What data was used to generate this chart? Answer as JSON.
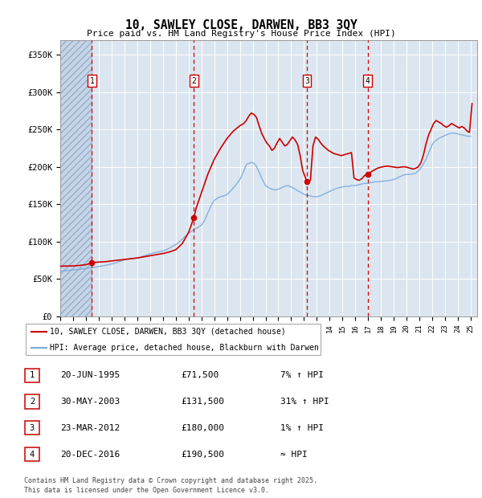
{
  "title": "10, SAWLEY CLOSE, DARWEN, BB3 3QY",
  "subtitle": "Price paid vs. HM Land Registry's House Price Index (HPI)",
  "xlim_start": 1993.0,
  "xlim_end": 2025.5,
  "ylim": [
    0,
    370000
  ],
  "yticks": [
    0,
    50000,
    100000,
    150000,
    200000,
    250000,
    300000,
    350000
  ],
  "ytick_labels": [
    "£0",
    "£50K",
    "£100K",
    "£150K",
    "£200K",
    "£250K",
    "£300K",
    "£350K"
  ],
  "background_color": "#ffffff",
  "plot_bg_color": "#dce6f0",
  "grid_color": "#ffffff",
  "transactions": [
    {
      "num": 1,
      "date_str": "20-JUN-1995",
      "date_x": 1995.47,
      "price": 71500,
      "hpi_pct": "7% ↑ HPI"
    },
    {
      "num": 2,
      "date_str": "30-MAY-2003",
      "date_x": 2003.41,
      "price": 131500,
      "hpi_pct": "31% ↑ HPI"
    },
    {
      "num": 3,
      "date_str": "23-MAR-2012",
      "date_x": 2012.23,
      "price": 180000,
      "hpi_pct": "1% ↑ HPI"
    },
    {
      "num": 4,
      "date_str": "20-DEC-2016",
      "date_x": 2016.97,
      "price": 190500,
      "hpi_pct": "≈ HPI"
    }
  ],
  "red_line_color": "#cc0000",
  "blue_line_color": "#7aaadd",
  "legend1": "10, SAWLEY CLOSE, DARWEN, BB3 3QY (detached house)",
  "legend2": "HPI: Average price, detached house, Blackburn with Darwen",
  "footnote": "Contains HM Land Registry data © Crown copyright and database right 2025.\nThis data is licensed under the Open Government Licence v3.0.",
  "hpi_data_x": [
    1993.0,
    1993.25,
    1993.5,
    1993.75,
    1994.0,
    1994.25,
    1994.5,
    1994.75,
    1995.0,
    1995.25,
    1995.5,
    1995.75,
    1996.0,
    1996.25,
    1996.5,
    1996.75,
    1997.0,
    1997.25,
    1997.5,
    1997.75,
    1998.0,
    1998.25,
    1998.5,
    1998.75,
    1999.0,
    1999.25,
    1999.5,
    1999.75,
    2000.0,
    2000.25,
    2000.5,
    2000.75,
    2001.0,
    2001.25,
    2001.5,
    2001.75,
    2002.0,
    2002.25,
    2002.5,
    2002.75,
    2003.0,
    2003.25,
    2003.5,
    2003.75,
    2004.0,
    2004.25,
    2004.5,
    2004.75,
    2005.0,
    2005.25,
    2005.5,
    2005.75,
    2006.0,
    2006.25,
    2006.5,
    2006.75,
    2007.0,
    2007.25,
    2007.5,
    2007.75,
    2008.0,
    2008.25,
    2008.5,
    2008.75,
    2009.0,
    2009.25,
    2009.5,
    2009.75,
    2010.0,
    2010.25,
    2010.5,
    2010.75,
    2011.0,
    2011.25,
    2011.5,
    2011.75,
    2012.0,
    2012.25,
    2012.5,
    2012.75,
    2013.0,
    2013.25,
    2013.5,
    2013.75,
    2014.0,
    2014.25,
    2014.5,
    2014.75,
    2015.0,
    2015.25,
    2015.5,
    2015.75,
    2016.0,
    2016.25,
    2016.5,
    2016.75,
    2017.0,
    2017.25,
    2017.5,
    2017.75,
    2018.0,
    2018.25,
    2018.5,
    2018.75,
    2019.0,
    2019.25,
    2019.5,
    2019.75,
    2020.0,
    2020.25,
    2020.5,
    2020.75,
    2021.0,
    2021.25,
    2021.5,
    2021.75,
    2022.0,
    2022.25,
    2022.5,
    2022.75,
    2023.0,
    2023.25,
    2023.5,
    2023.75,
    2024.0,
    2024.25,
    2024.5,
    2024.75,
    2025.0
  ],
  "hpi_data_y": [
    60000,
    60500,
    61000,
    61500,
    62000,
    62500,
    63000,
    63500,
    64000,
    64500,
    65000,
    65800,
    66500,
    67200,
    68000,
    69000,
    70000,
    71000,
    72500,
    74000,
    75500,
    76500,
    77000,
    77500,
    78000,
    79000,
    80500,
    82000,
    83500,
    84500,
    85500,
    86500,
    87500,
    89000,
    91000,
    93500,
    96000,
    99000,
    103000,
    107000,
    111000,
    114000,
    117000,
    119000,
    122000,
    128000,
    138000,
    148000,
    155000,
    158000,
    160000,
    161000,
    163000,
    167000,
    172000,
    177000,
    183000,
    192000,
    203000,
    205000,
    206000,
    202000,
    193000,
    183000,
    175000,
    172000,
    170000,
    169000,
    170000,
    172000,
    174000,
    175000,
    173000,
    171000,
    168000,
    166000,
    163000,
    162000,
    161000,
    160000,
    160000,
    161000,
    163000,
    165000,
    167000,
    169000,
    171000,
    172000,
    173000,
    174000,
    174000,
    175000,
    175000,
    176000,
    177000,
    178000,
    178000,
    179000,
    180000,
    180000,
    180500,
    181000,
    181500,
    182000,
    183000,
    185000,
    187000,
    189000,
    190000,
    190000,
    190500,
    192000,
    196000,
    202000,
    210000,
    220000,
    230000,
    235000,
    238000,
    240000,
    242000,
    244000,
    245000,
    245000,
    244000,
    243000,
    242000,
    241000,
    241000
  ],
  "red_data_x": [
    1993.0,
    1993.5,
    1994.0,
    1994.5,
    1995.0,
    1995.47,
    1995.6,
    1996.0,
    1996.5,
    1997.0,
    1997.5,
    1998.0,
    1998.5,
    1999.0,
    1999.5,
    2000.0,
    2000.5,
    2001.0,
    2001.5,
    2002.0,
    2002.5,
    2003.0,
    2003.41,
    2003.6,
    2004.0,
    2004.5,
    2005.0,
    2005.5,
    2006.0,
    2006.5,
    2007.0,
    2007.3,
    2007.5,
    2007.7,
    2007.9,
    2008.1,
    2008.3,
    2008.5,
    2008.7,
    2008.9,
    2009.1,
    2009.3,
    2009.5,
    2009.7,
    2009.9,
    2010.1,
    2010.3,
    2010.5,
    2010.7,
    2010.9,
    2011.1,
    2011.3,
    2011.5,
    2011.7,
    2011.9,
    2012.23,
    2012.5,
    2012.7,
    2012.9,
    2013.1,
    2013.3,
    2013.5,
    2013.7,
    2013.9,
    2014.1,
    2014.3,
    2014.5,
    2014.7,
    2014.9,
    2015.1,
    2015.3,
    2015.5,
    2015.7,
    2015.9,
    2016.1,
    2016.3,
    2016.5,
    2016.7,
    2016.97,
    2017.1,
    2017.3,
    2017.5,
    2017.7,
    2017.9,
    2018.1,
    2018.3,
    2018.5,
    2018.7,
    2018.9,
    2019.1,
    2019.3,
    2019.5,
    2019.7,
    2019.9,
    2020.1,
    2020.3,
    2020.5,
    2020.7,
    2020.9,
    2021.1,
    2021.3,
    2021.5,
    2021.7,
    2021.9,
    2022.1,
    2022.3,
    2022.5,
    2022.7,
    2022.9,
    2023.1,
    2023.3,
    2023.5,
    2023.7,
    2023.9,
    2024.1,
    2024.3,
    2024.5,
    2024.7,
    2024.9,
    2025.1
  ],
  "red_data_y": [
    67000,
    67200,
    67400,
    68000,
    69000,
    71500,
    72000,
    72500,
    73000,
    74000,
    75000,
    76000,
    77000,
    78000,
    79500,
    81000,
    82500,
    84000,
    86000,
    89000,
    97000,
    112000,
    131500,
    145000,
    165000,
    190000,
    210000,
    225000,
    238000,
    248000,
    255000,
    258000,
    262000,
    268000,
    272000,
    270000,
    266000,
    255000,
    245000,
    238000,
    232000,
    228000,
    222000,
    225000,
    232000,
    238000,
    233000,
    228000,
    230000,
    235000,
    240000,
    236000,
    230000,
    215000,
    195000,
    180000,
    182000,
    228000,
    240000,
    237000,
    232000,
    228000,
    225000,
    222000,
    220000,
    218000,
    217000,
    216000,
    215000,
    216000,
    217000,
    218000,
    219000,
    185000,
    183000,
    182000,
    184000,
    188000,
    190500,
    192000,
    194000,
    196000,
    198000,
    199000,
    200000,
    200500,
    201000,
    200500,
    200000,
    199500,
    199000,
    199500,
    200000,
    200000,
    199000,
    198000,
    197000,
    198000,
    200000,
    205000,
    215000,
    230000,
    242000,
    250000,
    258000,
    262000,
    260000,
    258000,
    255000,
    253000,
    255000,
    258000,
    256000,
    254000,
    252000,
    254000,
    252000,
    248000,
    246000,
    285000
  ]
}
